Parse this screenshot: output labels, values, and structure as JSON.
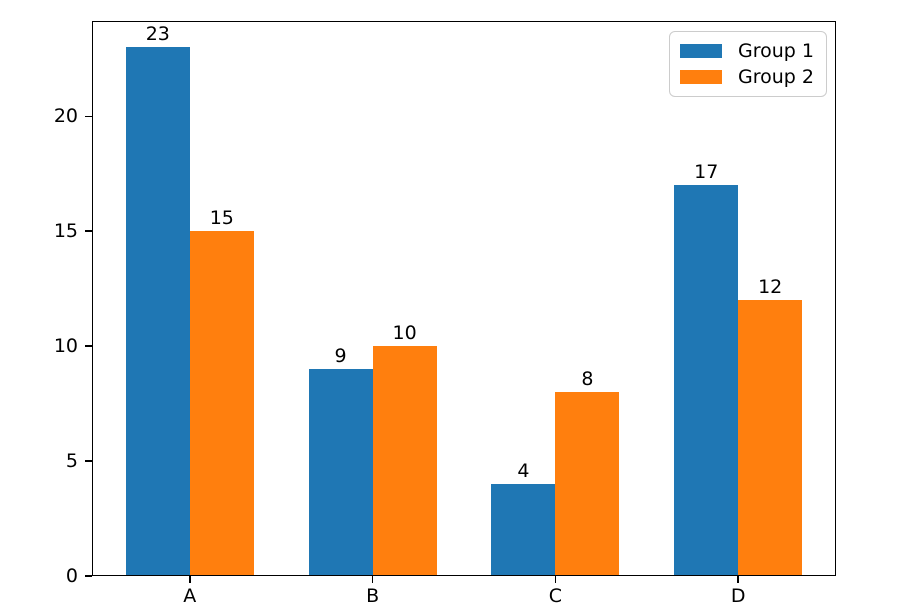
{
  "chart_data": {
    "type": "bar",
    "title": "",
    "xlabel": "",
    "ylabel": "",
    "categories": [
      "A",
      "B",
      "C",
      "D"
    ],
    "series": [
      {
        "name": "Group 1",
        "color": "#1f77b4",
        "values": [
          23,
          9,
          4,
          17
        ]
      },
      {
        "name": "Group 2",
        "color": "#ff7f0e",
        "values": [
          15,
          10,
          8,
          12
        ]
      }
    ],
    "bar_value_labels": [
      [
        23,
        9,
        4,
        17
      ],
      [
        15,
        10,
        8,
        12
      ]
    ],
    "bar_width": 0.35,
    "grid": false,
    "legend_position": "upper right",
    "xlim": [
      -0.535,
      3.535
    ],
    "ylim": [
      0,
      24.15
    ],
    "yticks": [
      0,
      5,
      10,
      15,
      20
    ]
  },
  "colors": {
    "spine": "#000000",
    "text": "#000000",
    "legend_border": "#cccccc",
    "background": "#ffffff"
  }
}
